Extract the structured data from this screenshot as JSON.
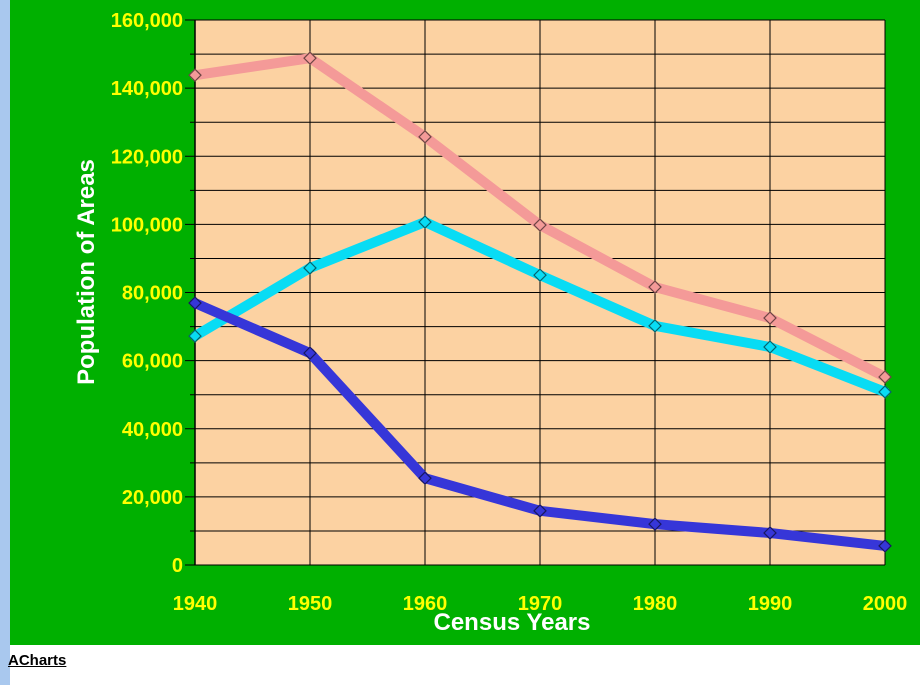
{
  "chart_data": {
    "type": "line",
    "x_label": "Census Years",
    "y_label": "Population of Areas",
    "x": [
      1940,
      1950,
      1960,
      1970,
      1980,
      1990,
      2000
    ],
    "xlim": [
      1940,
      2000
    ],
    "xticks": [
      1940,
      1950,
      1960,
      1970,
      1980,
      1990,
      2000
    ],
    "ylim": [
      0,
      160000
    ],
    "yticks": [
      0,
      {
        "value": 20000,
        "label": "20,000"
      },
      {
        "value": 40000,
        "label": "40,000"
      },
      {
        "value": 60000,
        "label": "60,000"
      },
      {
        "value": 80000,
        "label": "80,000"
      },
      {
        "value": 100000,
        "label": "100,000"
      },
      {
        "value": 120000,
        "label": "120,000"
      },
      {
        "value": 140000,
        "label": "140,000"
      },
      {
        "value": 160000,
        "label": "160,000"
      }
    ],
    "y_minor_ticks": [
      10000,
      30000,
      50000,
      70000,
      90000,
      110000,
      130000,
      150000
    ],
    "grid": true,
    "series": [
      {
        "color": "#f49a98",
        "values": [
          143800,
          148800,
          125700,
          99800,
          81600,
          72500,
          55200
        ]
      },
      {
        "color": "#08dcf4",
        "values": [
          67200,
          87200,
          100700,
          85100,
          70200,
          64000,
          50800
        ]
      },
      {
        "color": "#3636d8",
        "values": [
          76900,
          62200,
          25500,
          15900,
          12000,
          9400,
          5600
        ]
      }
    ]
  },
  "footer": {
    "link": "ACharts"
  }
}
